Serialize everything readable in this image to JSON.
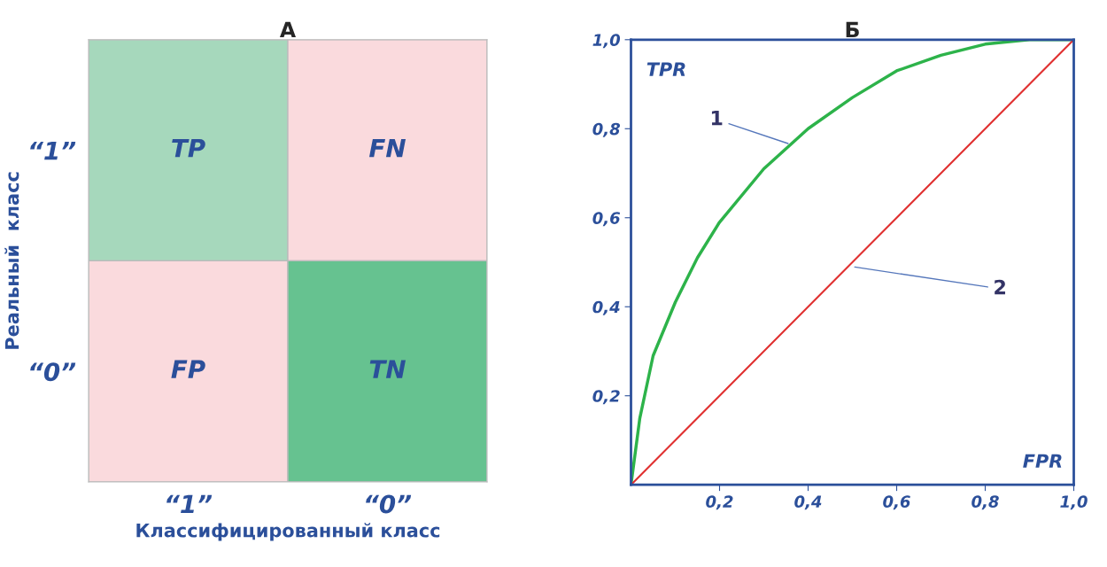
{
  "chart_data": [
    {
      "type": "other",
      "title": "А",
      "xlabel": "Классифицированный класс",
      "ylabel": "Реальный  класс",
      "categories": [
        "“1”",
        "“0”"
      ],
      "y_categories": [
        "“1”",
        "“0”"
      ],
      "cell_labels": [
        [
          "TP",
          "FN"
        ],
        [
          "FP",
          "TN"
        ]
      ],
      "colors": [
        [
          "#a6d8bc",
          "#fadadd"
        ],
        [
          "#fadadd",
          "#66c290"
        ]
      ]
    },
    {
      "type": "line",
      "title": "Б",
      "xlabel": "FPR",
      "ylabel": "TPR",
      "xlim": [
        0,
        1
      ],
      "ylim": [
        0,
        1
      ],
      "xticks": [
        {
          "value": 0.2,
          "label": "0,2"
        },
        {
          "value": 0.4,
          "label": "0,4"
        },
        {
          "value": 0.6,
          "label": "0,6"
        },
        {
          "value": 0.8,
          "label": "0,8"
        },
        {
          "value": 1.0,
          "label": "1,0"
        }
      ],
      "yticks": [
        {
          "value": 0.2,
          "label": "0,2"
        },
        {
          "value": 0.4,
          "label": "0,4"
        },
        {
          "value": 0.6,
          "label": "0,6"
        },
        {
          "value": 0.8,
          "label": "0,8"
        },
        {
          "value": 1.0,
          "label": "1,0"
        }
      ],
      "grid": false,
      "legend": false,
      "series": [
        {
          "color": "#2db34a",
          "x": [
            0,
            0.02,
            0.05,
            0.1,
            0.15,
            0.2,
            0.3,
            0.4,
            0.5,
            0.6,
            0.7,
            0.8,
            0.9,
            1.0
          ],
          "values": [
            0,
            0.15,
            0.29,
            0.41,
            0.51,
            0.59,
            0.71,
            0.8,
            0.87,
            0.93,
            0.965,
            0.99,
            1.0,
            1.0
          ]
        },
        {
          "color": "#e03030",
          "x": [
            0,
            1
          ],
          "values": [
            0,
            1
          ]
        }
      ],
      "annotations": [
        {
          "text": "1",
          "x": 0.36,
          "y": 0.765
        },
        {
          "text": "2",
          "x": 0.5,
          "y": 0.49
        }
      ]
    }
  ]
}
